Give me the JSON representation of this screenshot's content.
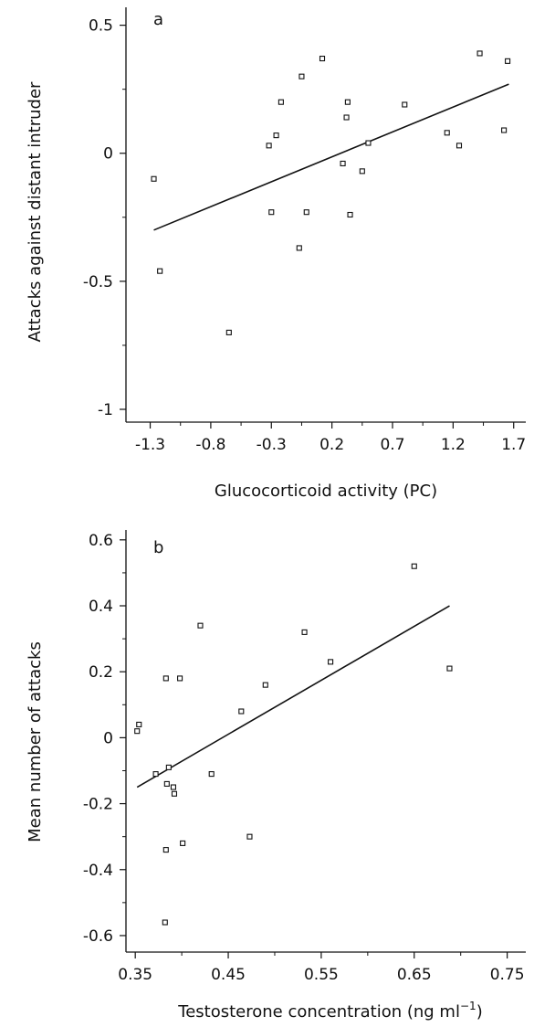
{
  "chart_data": [
    {
      "type": "scatter",
      "panel": "a",
      "title": "",
      "xlabel": "Glucocorticoid activity (PC)",
      "ylabel": "Attacks against distant intruder",
      "xlim": [
        -1.5,
        1.8
      ],
      "ylim": [
        -1.05,
        0.57
      ],
      "xticks": [
        -1.3,
        -0.8,
        -0.3,
        0.2,
        0.7,
        1.2,
        1.7
      ],
      "xtick_labels": [
        "-1.3",
        "-0.8",
        "-0.3",
        "0.2",
        "0.7",
        "1.2",
        "1.7"
      ],
      "yticks": [
        0.5,
        0,
        -0.5,
        -1
      ],
      "ytick_labels": [
        "0.5",
        "0",
        "-0.5",
        "-1"
      ],
      "grid": false,
      "x": [
        -1.27,
        -1.22,
        -0.65,
        -0.32,
        -0.3,
        -0.26,
        -0.22,
        -0.07,
        -0.05,
        -0.01,
        0.12,
        0.29,
        0.32,
        0.33,
        0.35,
        0.45,
        0.5,
        0.8,
        1.15,
        1.25,
        1.42,
        1.62,
        1.65
      ],
      "y": [
        -0.1,
        -0.46,
        -0.7,
        0.03,
        -0.23,
        0.07,
        0.2,
        -0.37,
        0.3,
        -0.23,
        0.37,
        -0.04,
        0.14,
        0.2,
        -0.24,
        -0.07,
        0.04,
        0.19,
        0.08,
        0.03,
        0.39,
        0.09,
        0.36
      ],
      "fit_line": {
        "x": [
          -1.27,
          1.66
        ],
        "y": [
          -0.3,
          0.27
        ]
      }
    },
    {
      "type": "scatter",
      "panel": "b",
      "title": "",
      "xlabel": "Testosterone concentration (ng ml",
      "xlabel_superscript": "−1",
      "xlabel_suffix": ")",
      "ylabel": "Mean number of attacks",
      "xlim": [
        0.34,
        0.77
      ],
      "ylim": [
        -0.65,
        0.63
      ],
      "xticks": [
        0.35,
        0.45,
        0.55,
        0.65,
        0.75
      ],
      "xtick_labels": [
        "0.35",
        "0.45",
        "0.55",
        "0.65",
        "0.75"
      ],
      "yticks": [
        0.6,
        0.4,
        0.2,
        0,
        -0.2,
        -0.4,
        -0.6
      ],
      "ytick_labels": [
        "0.6",
        "0.4",
        "0.2",
        "0",
        "-0.2",
        "-0.4",
        "-0.6"
      ],
      "grid": false,
      "x": [
        0.352,
        0.354,
        0.372,
        0.382,
        0.383,
        0.383,
        0.384,
        0.386,
        0.391,
        0.392,
        0.398,
        0.401,
        0.42,
        0.432,
        0.464,
        0.473,
        0.49,
        0.532,
        0.56,
        0.65,
        0.688
      ],
      "y": [
        0.02,
        0.04,
        -0.11,
        -0.56,
        0.18,
        -0.34,
        -0.14,
        -0.09,
        -0.15,
        -0.17,
        0.18,
        -0.32,
        0.34,
        -0.11,
        0.08,
        -0.3,
        0.16,
        0.32,
        0.23,
        0.52,
        0.21
      ],
      "fit_line": {
        "x": [
          0.352,
          0.688
        ],
        "y": [
          -0.15,
          0.4
        ]
      }
    }
  ]
}
